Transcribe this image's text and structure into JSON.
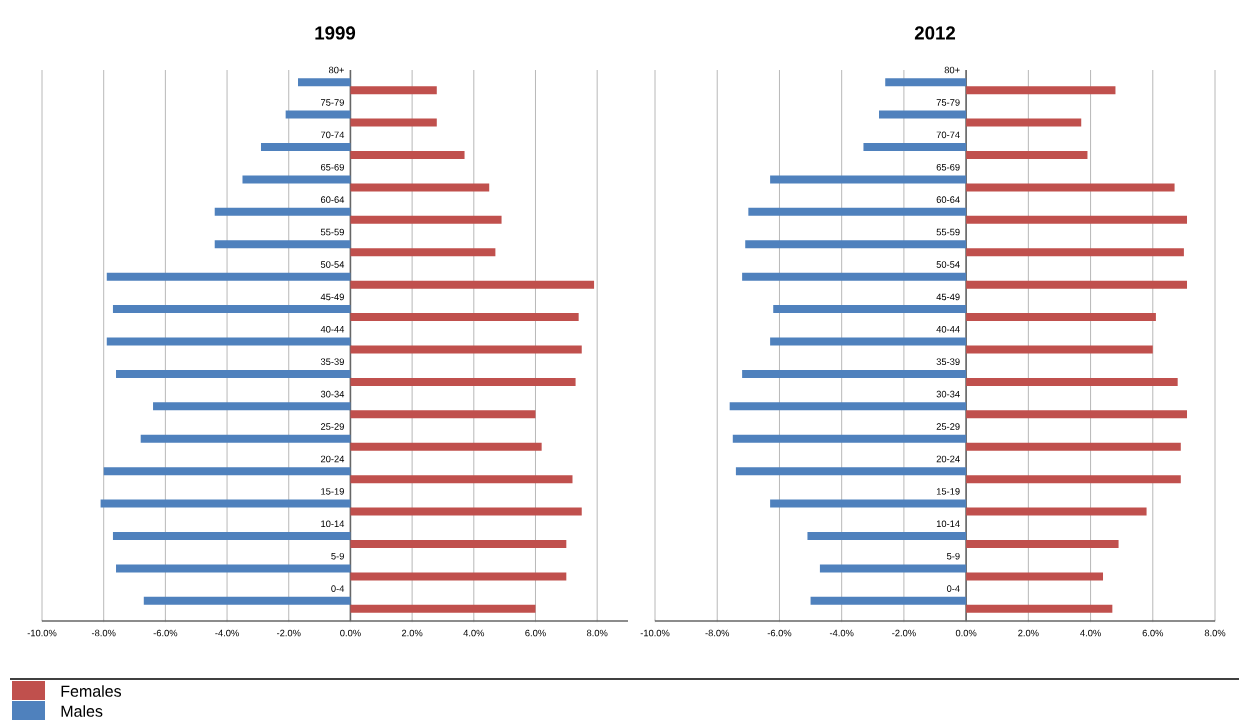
{
  "chart_data": [
    {
      "type": "bar",
      "orientation": "horizontal",
      "title": "1999",
      "categories": [
        "80+",
        "75-79",
        "70-74",
        "65-69",
        "60-64",
        "55-59",
        "50-54",
        "45-49",
        "40-44",
        "35-39",
        "30-34",
        "25-29",
        "20-24",
        "15-19",
        "10-14",
        "5-9",
        "0-4"
      ],
      "series": [
        {
          "name": "Females",
          "color": "#c0504d",
          "values": [
            2.8,
            2.8,
            3.7,
            4.5,
            4.9,
            4.7,
            7.9,
            7.4,
            7.5,
            7.3,
            6.0,
            6.2,
            7.2,
            7.5,
            7.0,
            7.0,
            6.0
          ]
        },
        {
          "name": "Males",
          "color": "#4f81bd",
          "values": [
            -1.7,
            -2.1,
            -2.9,
            -3.5,
            -4.4,
            -4.4,
            -7.9,
            -7.7,
            -7.9,
            -7.6,
            -6.4,
            -6.8,
            -8.0,
            -8.1,
            -7.7,
            -7.6,
            -6.7
          ]
        }
      ],
      "xlim": [
        -10,
        9
      ],
      "xticks": [
        {
          "value": -10,
          "label": "-10.0%"
        },
        {
          "value": -8,
          "label": "-8.0%"
        },
        {
          "value": -6,
          "label": "-6.0%"
        },
        {
          "value": -4,
          "label": "-4.0%"
        },
        {
          "value": -2,
          "label": "-2.0%"
        },
        {
          "value": 0,
          "label": "0.0%"
        },
        {
          "value": 2,
          "label": "2.0%"
        },
        {
          "value": 4,
          "label": "4.0%"
        },
        {
          "value": 6,
          "label": "6.0%"
        },
        {
          "value": 8,
          "label": "8.0%"
        }
      ],
      "grid": "x",
      "legend": "bottom"
    },
    {
      "type": "bar",
      "orientation": "horizontal",
      "title": "2012",
      "categories": [
        "80+",
        "75-79",
        "70-74",
        "65-69",
        "60-64",
        "55-59",
        "50-54",
        "45-49",
        "40-44",
        "35-39",
        "30-34",
        "25-29",
        "20-24",
        "15-19",
        "10-14",
        "5-9",
        "0-4"
      ],
      "series": [
        {
          "color": "#c0504d",
          "values": [
            4.8,
            3.7,
            3.9,
            6.7,
            7.1,
            7.0,
            7.1,
            6.1,
            6.0,
            6.8,
            7.1,
            6.9,
            6.9,
            5.8,
            4.9,
            4.4,
            4.7
          ]
        },
        {
          "color": "#4f81bd",
          "values": [
            -2.6,
            -2.8,
            -3.3,
            -6.3,
            -7.0,
            -7.1,
            -7.2,
            -6.2,
            -6.3,
            -7.2,
            -7.6,
            -7.5,
            -7.4,
            -6.3,
            -5.1,
            -4.7,
            -5.0
          ]
        }
      ],
      "xlim": [
        -10,
        8
      ],
      "xticks": [
        {
          "value": -10,
          "label": "-10.0%"
        },
        {
          "value": -8,
          "label": "-8.0%"
        },
        {
          "value": -6,
          "label": "-6.0%"
        },
        {
          "value": -4,
          "label": "-4.0%"
        },
        {
          "value": -2,
          "label": "-2.0%"
        },
        {
          "value": 0,
          "label": "0.0%"
        },
        {
          "value": 2,
          "label": "2.0%"
        },
        {
          "value": 4,
          "label": "4.0%"
        },
        {
          "value": 6,
          "label": "6.0%"
        },
        {
          "value": 8,
          "label": "8.0%"
        }
      ],
      "grid": "x"
    }
  ]
}
